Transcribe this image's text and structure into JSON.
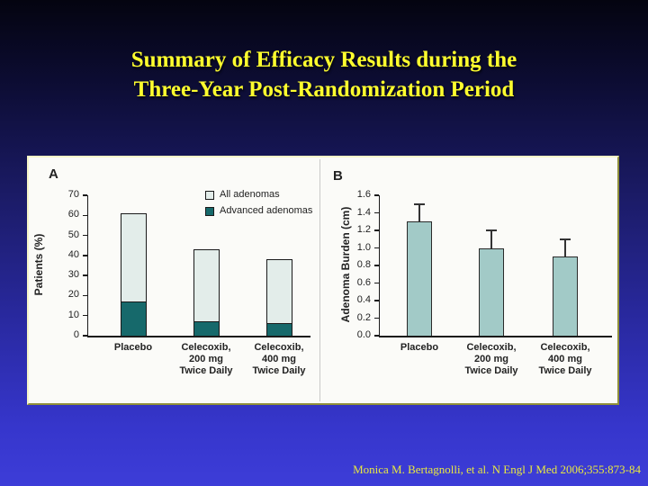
{
  "slide": {
    "title_line1": "Summary of Efficacy Results during the",
    "title_line2": "Three-Year Post-Randomization Period",
    "citation": "Monica M. Bertagnolli, et al. N Engl J Med 2006;355:873-84",
    "colors": {
      "background_top": "#040410",
      "background_mid": "#1c1c6a",
      "background_bottom": "#3d3dd8",
      "title": "#ffff2e",
      "citation": "#e9e93f",
      "panel_bg": "#fbfbf8",
      "panel_border_light": "#f6f6c8",
      "panel_border_dark": "#8f8f3a",
      "axis": "#1a1a1a",
      "divider": "#c9c9c9"
    }
  },
  "chart_data": [
    {
      "type": "bar",
      "panel_label": "A",
      "stacked": true,
      "categories": [
        [
          "Placebo"
        ],
        [
          "Celecoxib,",
          "200 mg",
          "Twice Daily"
        ],
        [
          "Celecoxib,",
          "400 mg",
          "Twice Daily"
        ]
      ],
      "series": [
        {
          "name": "All adenomas",
          "values": [
            61,
            43,
            38
          ],
          "color": "#e3edea"
        },
        {
          "name": "Advanced adenomas",
          "values": [
            17,
            7,
            6.5
          ],
          "color": "#16696b"
        }
      ],
      "ylabel": "Patients (%)",
      "ylim": [
        0,
        70
      ],
      "ytick_step": 10,
      "legend_position": "top-right",
      "grid": false
    },
    {
      "type": "bar",
      "panel_label": "B",
      "stacked": false,
      "categories": [
        [
          "Placebo"
        ],
        [
          "Celecoxib,",
          "200 mg",
          "Twice Daily"
        ],
        [
          "Celecoxib,",
          "400 mg",
          "Twice Daily"
        ]
      ],
      "values": [
        1.3,
        1.0,
        0.9
      ],
      "error_up": [
        0.2,
        0.2,
        0.2
      ],
      "bar_color": "#a2cac7",
      "ylabel": "Adenoma Burden (cm)",
      "ylim": [
        0,
        1.6
      ],
      "ytick_step": 0.2,
      "grid": false
    }
  ]
}
